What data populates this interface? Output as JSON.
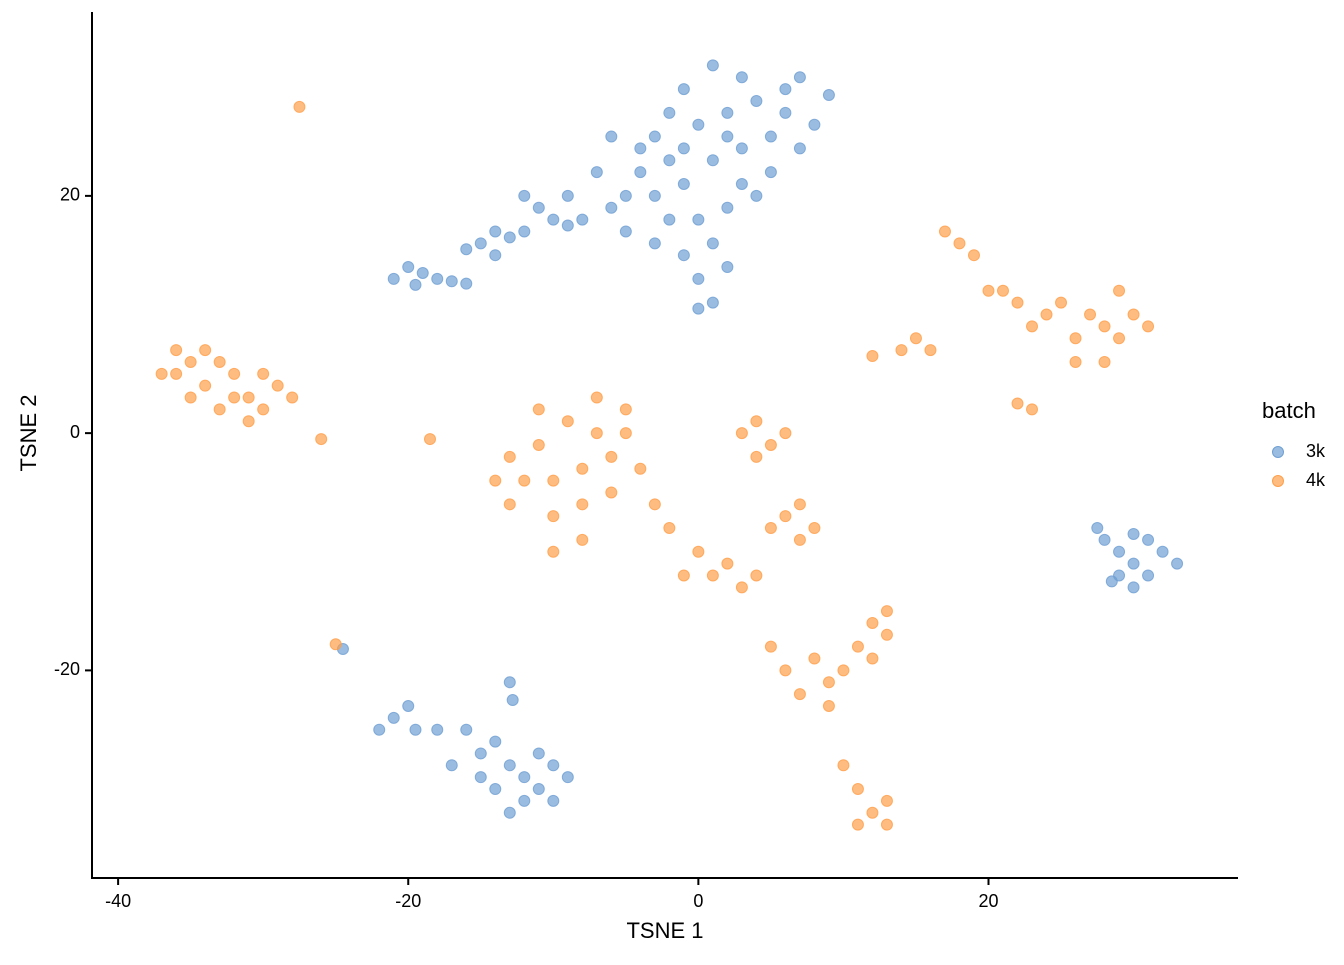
{
  "chart_data": {
    "type": "scatter",
    "xlabel": "TSNE 1",
    "ylabel": "TSNE 2",
    "legend_title": "batch",
    "legend": "right",
    "xlim": [
      -41.8,
      37.2
    ],
    "ylim": [
      -37.5,
      35.5
    ],
    "xticks": [
      -40,
      -20,
      0,
      20
    ],
    "yticks": [
      -20,
      0,
      20
    ],
    "series": [
      {
        "name": "3k",
        "color": "#6f9fd3",
        "x": [
          2,
          4,
          6,
          3,
          1,
          -1,
          5,
          7,
          3,
          0,
          -2,
          -3,
          1,
          -1,
          -3,
          -5,
          -4,
          -2,
          0,
          2,
          3,
          4,
          1,
          -1,
          2,
          -3,
          -5,
          -6,
          -7,
          -4,
          -6,
          6,
          7,
          8,
          5,
          0,
          1,
          0,
          9,
          -1,
          2,
          -2,
          -8,
          -9,
          -10,
          -11,
          -9,
          -12,
          -13,
          -14,
          -15,
          -16,
          -14,
          -12,
          -21,
          -20,
          -19.5,
          -19,
          -18,
          -17,
          -16,
          30,
          29,
          31,
          28,
          32,
          30,
          29,
          31,
          27.5,
          33,
          30,
          28.5,
          -21,
          -20,
          -22,
          -19.5,
          -18,
          -16,
          -15,
          -14,
          -13,
          -12,
          -11,
          -10,
          -12,
          -14,
          -13,
          -10,
          -9,
          -15,
          -17,
          -13,
          -12.8,
          -24.5,
          -11
        ],
        "y": [
          27,
          28,
          27,
          30,
          31,
          29,
          25,
          24,
          24,
          26,
          27,
          25,
          23,
          21,
          20,
          20,
          22,
          18,
          18,
          19,
          21,
          20,
          16,
          15,
          14,
          16,
          17,
          19,
          22,
          24,
          25,
          29,
          30,
          26,
          22,
          13,
          11,
          10.5,
          28.5,
          24,
          25,
          23,
          18,
          17.5,
          18,
          19,
          20,
          17,
          16.5,
          17,
          16,
          15.5,
          15,
          20,
          13,
          14,
          12.5,
          13.5,
          13,
          12.8,
          12.6,
          -11,
          -10,
          -12,
          -9,
          -10,
          -13,
          -12,
          -9,
          -8,
          -11,
          -8.5,
          -12.5,
          -24,
          -23,
          -25,
          -25,
          -25,
          -25,
          -27,
          -26,
          -28,
          -29,
          -30,
          -31,
          -31,
          -30,
          -32,
          -28,
          -29,
          -29,
          -28,
          -21,
          -22.5,
          -18.2,
          -27
        ]
      },
      {
        "name": "4k",
        "color": "#ff9f4a",
        "x": [
          -36,
          -35,
          -34,
          -33,
          -32,
          -34,
          -37,
          -35,
          -31,
          -30,
          -29,
          -31,
          -32,
          -28,
          -33,
          -36,
          -30,
          -27.5,
          -18.5,
          -25,
          -26,
          -8,
          -10,
          -6,
          -7,
          -9,
          -11,
          -12,
          -13,
          -10,
          -8,
          -6,
          -5,
          -4,
          -7,
          -5,
          -11,
          -13,
          -3,
          -2,
          0,
          1,
          2,
          3,
          -1,
          -8,
          -10,
          4,
          -14,
          3,
          4,
          5,
          4,
          6,
          6,
          7,
          8,
          7,
          5,
          6,
          7,
          8,
          9,
          10,
          11,
          12,
          13,
          12,
          5,
          9,
          13,
          10,
          11,
          12,
          13,
          11,
          13,
          28,
          27,
          29,
          30,
          26,
          25,
          24,
          22,
          21,
          23,
          31,
          28,
          26,
          29,
          17,
          18,
          19,
          14,
          12,
          15,
          16,
          23,
          22,
          20
        ],
        "y": [
          5,
          6,
          4,
          6,
          5,
          7,
          5,
          3,
          3,
          2,
          4,
          1,
          3,
          3,
          2,
          7,
          5,
          27.5,
          -0.5,
          -17.8,
          -0.5,
          -3,
          -4,
          -2,
          0,
          1,
          -1,
          -4,
          -6,
          -7,
          -6,
          -5,
          0,
          -3,
          3,
          2,
          2,
          -2,
          -6,
          -8,
          -10,
          -12,
          -11,
          -13,
          -12,
          -9,
          -10,
          -12,
          -4,
          0,
          1,
          -1,
          -2,
          0,
          -7,
          -6,
          -8,
          -9,
          -8,
          -20,
          -22,
          -19,
          -21,
          -20,
          -18,
          -16,
          -17,
          -19,
          -18,
          -23,
          -15,
          -28,
          -30,
          -32,
          -33,
          -33,
          -31,
          9,
          10,
          8,
          10,
          8,
          11,
          10,
          11,
          12,
          9,
          9,
          6,
          6,
          12,
          17,
          16,
          15,
          7,
          6.5,
          8,
          7,
          2,
          2.5,
          12
        ]
      }
    ]
  }
}
